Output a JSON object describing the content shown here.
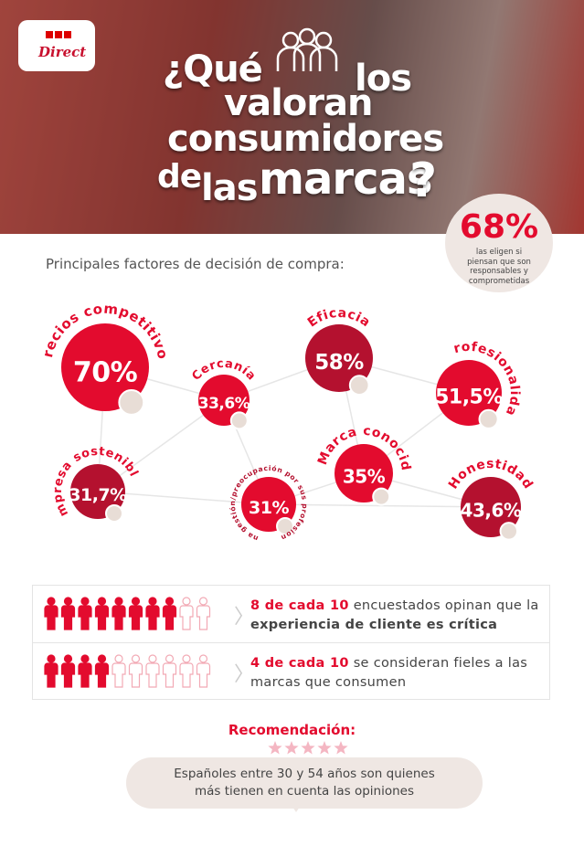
{
  "logo": {
    "text": "Direct"
  },
  "header": {
    "title_lines": [
      "¿Qué",
      "los",
      "valoran",
      "consumidores",
      "de",
      "las",
      "marcas",
      "?"
    ]
  },
  "badge": {
    "value": "68%",
    "text": "las eligen si piensan que son responsables y comprometidas"
  },
  "subtitle": "Principales factores de decisión de compra:",
  "factors": [
    {
      "name": "Precios competitivos",
      "value": "70%",
      "color": "#e30b2e"
    },
    {
      "name": "Cercanía",
      "value": "33,6%",
      "color": "#e30b2e"
    },
    {
      "name": "Eficacia",
      "value": "58%",
      "color": "#b4112f"
    },
    {
      "name": "Profesionalidad",
      "value": "51,5%",
      "color": "#e30b2e"
    },
    {
      "name": "Empresa sostenible",
      "value": "31,7%",
      "color": "#b4112f"
    },
    {
      "name": "Buena gestión/preocupación por sus profesionales",
      "value": "31%",
      "color": "#e30b2e"
    },
    {
      "name": "Marca conocida",
      "value": "35%",
      "color": "#e30b2e"
    },
    {
      "name": "Honestidad",
      "value": "43,6%",
      "color": "#b4112f"
    }
  ],
  "stats": [
    {
      "icons": {
        "filled": 8,
        "total": 10
      },
      "highlight": "8 de cada 10",
      "text": "encuestados opinan que la",
      "bold": "experiencia de cliente es crítica"
    },
    {
      "icons": {
        "filled": 4,
        "total": 10
      },
      "highlight": "4 de cada 10",
      "text": "se consideran fieles a las marcas que consumen",
      "bold": null
    }
  ],
  "recommendation": {
    "title": "Recomendación:",
    "stars": 5,
    "text": "Españoles entre 30 y 54 años son quienes más tienen en cuenta las opiniones"
  }
}
